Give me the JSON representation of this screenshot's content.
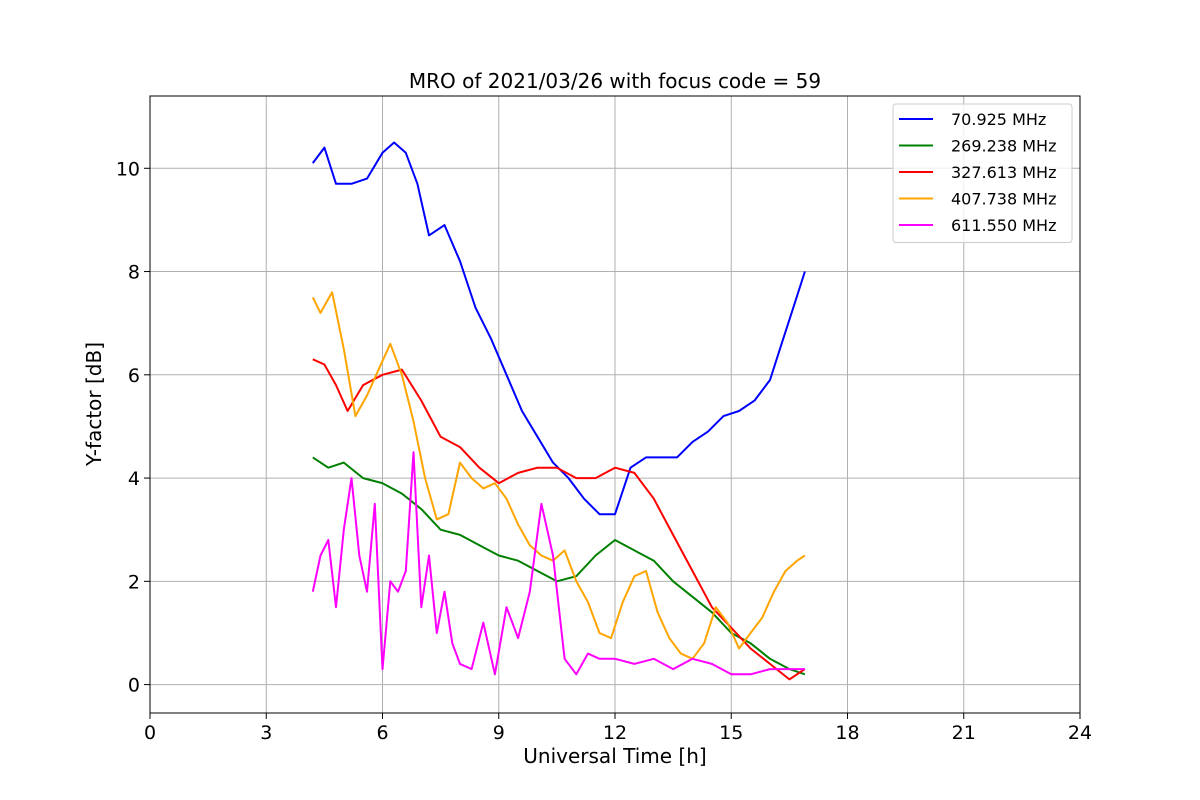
{
  "chart_data": {
    "type": "line",
    "title": "MRO of 2021/03/26 with focus code = 59",
    "xlabel": "Universal Time [h]",
    "ylabel": "Y-factor [dB]",
    "xlim": [
      0,
      24
    ],
    "ylim": [
      -0.55,
      11.4
    ],
    "xticks": [
      0,
      3,
      6,
      9,
      12,
      15,
      18,
      21,
      24
    ],
    "yticks": [
      0,
      2,
      4,
      6,
      8,
      10
    ],
    "grid": true,
    "legend_position": "top-right",
    "series": [
      {
        "name": " 70.925 MHz",
        "color": "#0000ff",
        "x": [
          4.2,
          4.5,
          4.8,
          5.2,
          5.6,
          6.0,
          6.3,
          6.6,
          6.9,
          7.2,
          7.6,
          8.0,
          8.4,
          8.8,
          9.2,
          9.6,
          10.0,
          10.4,
          10.8,
          11.2,
          11.6,
          12.0,
          12.4,
          12.8,
          13.2,
          13.6,
          14.0,
          14.4,
          14.8,
          15.2,
          15.6,
          16.0,
          16.3,
          16.6,
          16.9
        ],
        "y": [
          10.1,
          10.4,
          9.7,
          9.7,
          9.8,
          10.3,
          10.5,
          10.3,
          9.7,
          8.7,
          8.9,
          8.2,
          7.3,
          6.7,
          6.0,
          5.3,
          4.8,
          4.3,
          4.0,
          3.6,
          3.3,
          3.3,
          4.2,
          4.4,
          4.4,
          4.4,
          4.7,
          4.9,
          5.2,
          5.3,
          5.5,
          5.9,
          6.6,
          7.3,
          8.0
        ]
      },
      {
        "name": "269.238 MHz",
        "color": "#008000",
        "x": [
          4.2,
          4.6,
          5.0,
          5.5,
          6.0,
          6.5,
          7.0,
          7.5,
          8.0,
          8.5,
          9.0,
          9.5,
          10.0,
          10.5,
          11.0,
          11.5,
          12.0,
          12.5,
          13.0,
          13.5,
          14.0,
          14.5,
          15.0,
          15.5,
          16.0,
          16.5,
          16.9
        ],
        "y": [
          4.4,
          4.2,
          4.3,
          4.0,
          3.9,
          3.7,
          3.4,
          3.0,
          2.9,
          2.7,
          2.5,
          2.4,
          2.2,
          2.0,
          2.1,
          2.5,
          2.8,
          2.6,
          2.4,
          2.0,
          1.7,
          1.4,
          1.0,
          0.8,
          0.5,
          0.3,
          0.2
        ]
      },
      {
        "name": "327.613 MHz",
        "color": "#ff0000",
        "x": [
          4.2,
          4.5,
          4.8,
          5.1,
          5.5,
          6.0,
          6.5,
          7.0,
          7.5,
          8.0,
          8.5,
          9.0,
          9.5,
          10.0,
          10.5,
          11.0,
          11.5,
          12.0,
          12.5,
          13.0,
          13.5,
          14.0,
          14.5,
          15.0,
          15.5,
          16.0,
          16.5,
          16.9
        ],
        "y": [
          6.3,
          6.2,
          5.8,
          5.3,
          5.8,
          6.0,
          6.1,
          5.5,
          4.8,
          4.6,
          4.2,
          3.9,
          4.1,
          4.2,
          4.2,
          4.0,
          4.0,
          4.2,
          4.1,
          3.6,
          2.9,
          2.2,
          1.5,
          1.1,
          0.7,
          0.4,
          0.1,
          0.3
        ]
      },
      {
        "name": "407.738 MHz",
        "color": "#ffa500",
        "x": [
          4.2,
          4.4,
          4.7,
          5.0,
          5.3,
          5.6,
          5.9,
          6.2,
          6.5,
          6.8,
          7.1,
          7.4,
          7.7,
          8.0,
          8.3,
          8.6,
          8.9,
          9.2,
          9.5,
          9.8,
          10.1,
          10.4,
          10.7,
          11.0,
          11.3,
          11.6,
          11.9,
          12.2,
          12.5,
          12.8,
          13.1,
          13.4,
          13.7,
          14.0,
          14.3,
          14.6,
          14.9,
          15.2,
          15.5,
          15.8,
          16.1,
          16.4,
          16.7,
          16.9
        ],
        "y": [
          7.5,
          7.2,
          7.6,
          6.5,
          5.2,
          5.6,
          6.1,
          6.6,
          6.0,
          5.1,
          4.0,
          3.2,
          3.3,
          4.3,
          4.0,
          3.8,
          3.9,
          3.6,
          3.1,
          2.7,
          2.5,
          2.4,
          2.6,
          2.0,
          1.6,
          1.0,
          0.9,
          1.6,
          2.1,
          2.2,
          1.4,
          0.9,
          0.6,
          0.5,
          0.8,
          1.5,
          1.2,
          0.7,
          1.0,
          1.3,
          1.8,
          2.2,
          2.4,
          2.5
        ]
      },
      {
        "name": "611.550 MHz",
        "color": "#ff00ff",
        "x": [
          4.2,
          4.4,
          4.6,
          4.8,
          5.0,
          5.2,
          5.4,
          5.6,
          5.8,
          6.0,
          6.2,
          6.4,
          6.6,
          6.8,
          7.0,
          7.2,
          7.4,
          7.6,
          7.8,
          8.0,
          8.3,
          8.6,
          8.9,
          9.2,
          9.5,
          9.8,
          10.1,
          10.4,
          10.7,
          11.0,
          11.3,
          11.6,
          12.0,
          12.5,
          13.0,
          13.5,
          14.0,
          14.5,
          15.0,
          15.5,
          16.0,
          16.5,
          16.9
        ],
        "y": [
          1.8,
          2.5,
          2.8,
          1.5,
          3.0,
          4.0,
          2.5,
          1.8,
          3.5,
          0.3,
          2.0,
          1.8,
          2.2,
          4.5,
          1.5,
          2.5,
          1.0,
          1.8,
          0.8,
          0.4,
          0.3,
          1.2,
          0.2,
          1.5,
          0.9,
          1.8,
          3.5,
          2.5,
          0.5,
          0.2,
          0.6,
          0.5,
          0.5,
          0.4,
          0.5,
          0.3,
          0.5,
          0.4,
          0.2,
          0.2,
          0.3,
          0.3,
          0.3
        ]
      }
    ]
  }
}
